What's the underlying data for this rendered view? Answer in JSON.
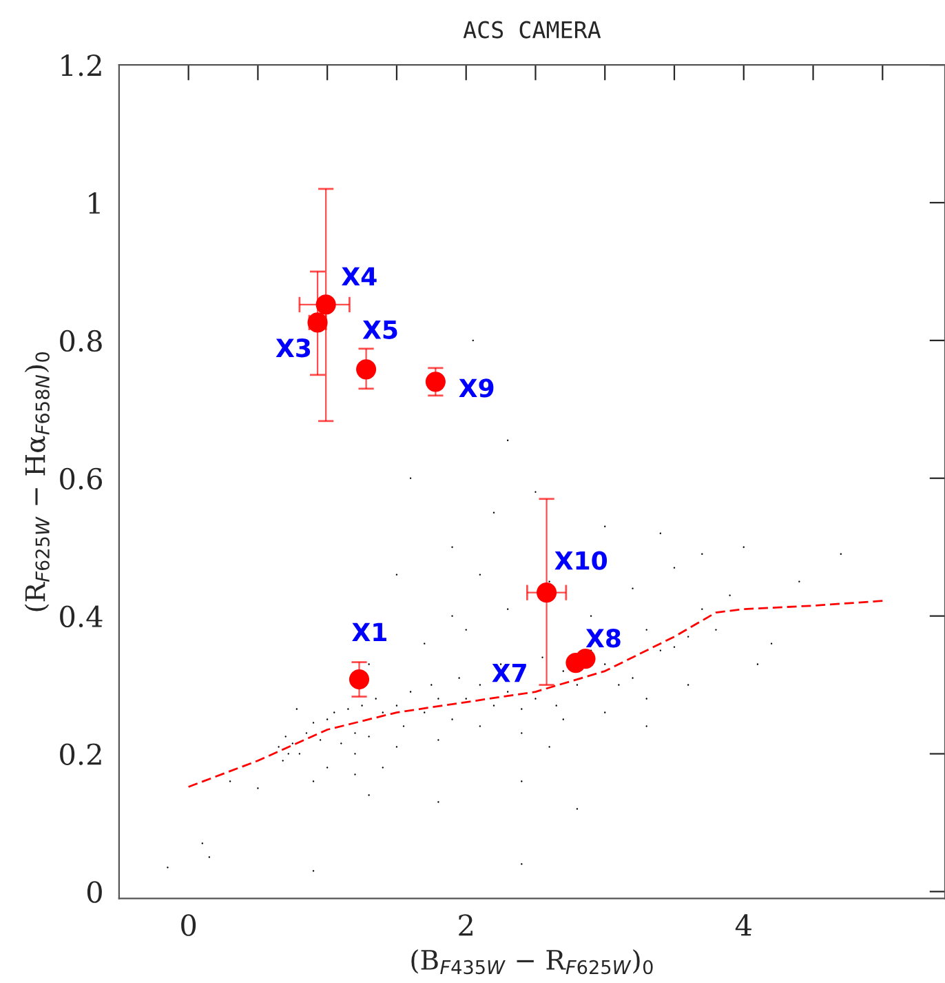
{
  "chart_data": {
    "type": "scatter",
    "title": "ACS CAMERA",
    "xlabel": "(B$_{F435W}$ − R$_{F625W}$)$_{0}$",
    "ylabel": "(R$_{F625W}$ − Hα$_{F658N}$)$_{0}$",
    "xlim": [
      -0.5,
      5.45
    ],
    "ylim": [
      -0.01,
      1.2
    ],
    "xticks": [
      0,
      {
        "value": 0.5,
        "label": null
      },
      {
        "value": 1,
        "label": null
      },
      {
        "value": 1.5,
        "label": null
      },
      2,
      {
        "value": 2.5,
        "label": null
      },
      {
        "value": 3,
        "label": null
      },
      {
        "value": 3.5,
        "label": null
      },
      4,
      {
        "value": 4.5,
        "label": null
      },
      {
        "value": 5,
        "label": null
      }
    ],
    "yticks": [
      0,
      0.2,
      0.4,
      0.6,
      0.8,
      1,
      1.2
    ],
    "grid": false,
    "legend": false,
    "series": [
      {
        "type": "scatter",
        "marker": "point",
        "color": "#000000",
        "x": [
          0.68,
          0.72,
          0.75,
          0.7,
          0.8,
          0.85,
          0.9,
          0.95,
          1.0,
          1.05,
          1.1,
          1.15,
          1.2,
          1.25,
          1.3,
          1.35,
          1.4,
          1.5,
          1.55,
          1.6,
          1.7,
          1.75,
          1.8,
          1.9,
          1.95,
          2.0,
          2.1,
          2.2,
          2.25,
          2.3,
          2.4,
          2.5,
          2.55,
          2.65,
          2.7,
          2.8,
          2.9,
          3.0,
          3.1,
          3.2,
          3.3,
          3.4,
          3.5,
          3.6,
          3.7,
          3.8,
          3.9,
          1.0,
          1.2,
          1.5,
          1.8,
          2.1,
          2.4,
          2.7,
          3.0,
          3.3,
          3.6,
          1.3,
          1.7,
          2.0,
          2.3,
          2.6,
          2.9,
          3.2,
          3.5,
          1.9,
          2.2,
          1.6,
          2.5,
          3.0,
          3.7,
          4.4,
          4.2,
          0.9,
          1.3,
          1.8,
          2.4,
          2.8,
          1.9,
          2.1,
          1.5,
          3.4,
          4.0,
          0.5,
          0.3,
          0.1,
          0.15,
          -0.15,
          0.9,
          2.4,
          1.2,
          2.05,
          2.3,
          1.4,
          0.78,
          0.65,
          4.7,
          4.1,
          3.3,
          2.6
        ],
        "values": [
          0.19,
          0.2,
          0.215,
          0.225,
          0.2,
          0.23,
          0.245,
          0.22,
          0.25,
          0.26,
          0.215,
          0.265,
          0.23,
          0.27,
          0.225,
          0.28,
          0.26,
          0.27,
          0.24,
          0.29,
          0.26,
          0.3,
          0.28,
          0.25,
          0.31,
          0.28,
          0.3,
          0.27,
          0.33,
          0.29,
          0.265,
          0.28,
          0.34,
          0.27,
          0.32,
          0.3,
          0.35,
          0.33,
          0.3,
          0.31,
          0.38,
          0.35,
          0.355,
          0.37,
          0.41,
          0.38,
          0.43,
          0.18,
          0.2,
          0.21,
          0.22,
          0.24,
          0.23,
          0.25,
          0.26,
          0.28,
          0.3,
          0.33,
          0.36,
          0.38,
          0.41,
          0.45,
          0.4,
          0.44,
          0.47,
          0.5,
          0.55,
          0.6,
          0.58,
          0.53,
          0.49,
          0.45,
          0.36,
          0.16,
          0.14,
          0.13,
          0.16,
          0.12,
          0.4,
          0.46,
          0.46,
          0.52,
          0.5,
          0.15,
          0.16,
          0.07,
          0.05,
          0.035,
          0.03,
          0.04,
          0.17,
          0.8,
          0.655,
          0.18,
          0.265,
          0.21,
          0.49,
          0.33,
          0.24,
          0.21
        ]
      },
      {
        "type": "scatter",
        "marker": "circle",
        "color": "#ff0000",
        "x": [
          1.23,
          0.93,
          0.99,
          1.28,
          1.78,
          2.58,
          2.79,
          2.86
        ],
        "values": [
          0.308,
          0.826,
          0.852,
          0.758,
          0.74,
          0.434,
          0.332,
          0.338
        ],
        "errors": [
          [
            0.283,
            0.333
          ],
          [
            0.75,
            0.9
          ],
          [
            0.683,
            1.02
          ],
          [
            0.73,
            0.788
          ],
          [
            0.72,
            0.76
          ],
          [
            0.3,
            0.57
          ],
          null,
          null
        ],
        "xerrors": [
          null,
          [
            0.87,
            0.99
          ],
          [
            0.8,
            1.16
          ],
          null,
          null,
          [
            2.44,
            2.72
          ],
          null,
          null
        ]
      },
      {
        "type": "line",
        "line_style": "dashed",
        "color": "#ff0000",
        "x": [
          0,
          0.5,
          1,
          1.5,
          2,
          2.5,
          3,
          3.5,
          3.8,
          4,
          4.5,
          5
        ],
        "values": [
          0.152,
          0.19,
          0.235,
          0.26,
          0.275,
          0.29,
          0.32,
          0.37,
          0.405,
          0.41,
          0.415,
          0.422
        ]
      }
    ],
    "annotations": [
      {
        "text": "X1",
        "x": 1.23,
        "y": 0.308
      },
      {
        "text": "X3",
        "x": 0.93,
        "y": 0.826
      },
      {
        "text": "X4",
        "x": 0.99,
        "y": 0.852
      },
      {
        "text": "X5",
        "x": 1.28,
        "y": 0.758
      },
      {
        "text": "X9",
        "x": 1.78,
        "y": 0.74
      },
      {
        "text": "X10",
        "x": 2.58,
        "y": 0.434
      },
      {
        "text": "X7",
        "x": 2.79,
        "y": 0.332
      },
      {
        "text": "X8",
        "x": 2.86,
        "y": 0.338
      }
    ]
  }
}
